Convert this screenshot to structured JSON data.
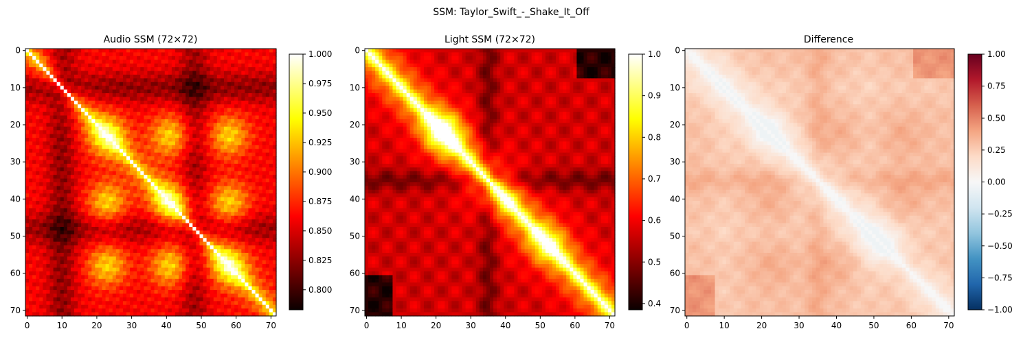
{
  "figure": {
    "suptitle": "SSM: Taylor_Swift_-_Shake_It_Off"
  },
  "chart_data": [
    {
      "type": "heatmap",
      "title": "Audio SSM (72×72)",
      "size": 72,
      "colormap": "hot",
      "vmin": 0.783,
      "vmax": 1.0,
      "xticks": [
        0,
        10,
        20,
        30,
        40,
        50,
        60,
        70
      ],
      "yticks": [
        0,
        10,
        20,
        30,
        40,
        50,
        60,
        70
      ],
      "colorbar_ticks": [
        "0.800",
        "0.825",
        "0.850",
        "0.875",
        "0.900",
        "0.925",
        "0.950",
        "0.975",
        "1.000"
      ],
      "colorbar_tick_values": [
        0.8,
        0.825,
        0.85,
        0.875,
        0.9,
        0.925,
        0.95,
        0.975,
        1.0
      ]
    },
    {
      "type": "heatmap",
      "title": "Light SSM (72×72)",
      "size": 72,
      "colormap": "hot",
      "vmin": 0.385,
      "vmax": 1.0,
      "xticks": [
        0,
        10,
        20,
        30,
        40,
        50,
        60,
        70
      ],
      "yticks": [
        0,
        10,
        20,
        30,
        40,
        50,
        60,
        70
      ],
      "colorbar_ticks": [
        "0.4",
        "0.5",
        "0.6",
        "0.7",
        "0.8",
        "0.9",
        "1.0"
      ],
      "colorbar_tick_values": [
        0.4,
        0.5,
        0.6,
        0.7,
        0.8,
        0.9,
        1.0
      ]
    },
    {
      "type": "heatmap",
      "title": "Difference",
      "size": 72,
      "colormap": "RdBu_r",
      "vmin": -1.0,
      "vmax": 1.0,
      "xticks": [
        0,
        10,
        20,
        30,
        40,
        50,
        60,
        70
      ],
      "yticks": [
        0,
        10,
        20,
        30,
        40,
        50,
        60,
        70
      ],
      "colorbar_ticks": [
        "1.00",
        "0.75",
        "0.50",
        "0.25",
        "0.00",
        "−0.25",
        "−0.50",
        "−0.75",
        "−1.00"
      ],
      "colorbar_tick_values": [
        1.0,
        0.75,
        0.5,
        0.25,
        0.0,
        -0.25,
        -0.5,
        -0.75,
        -1.0
      ]
    }
  ]
}
